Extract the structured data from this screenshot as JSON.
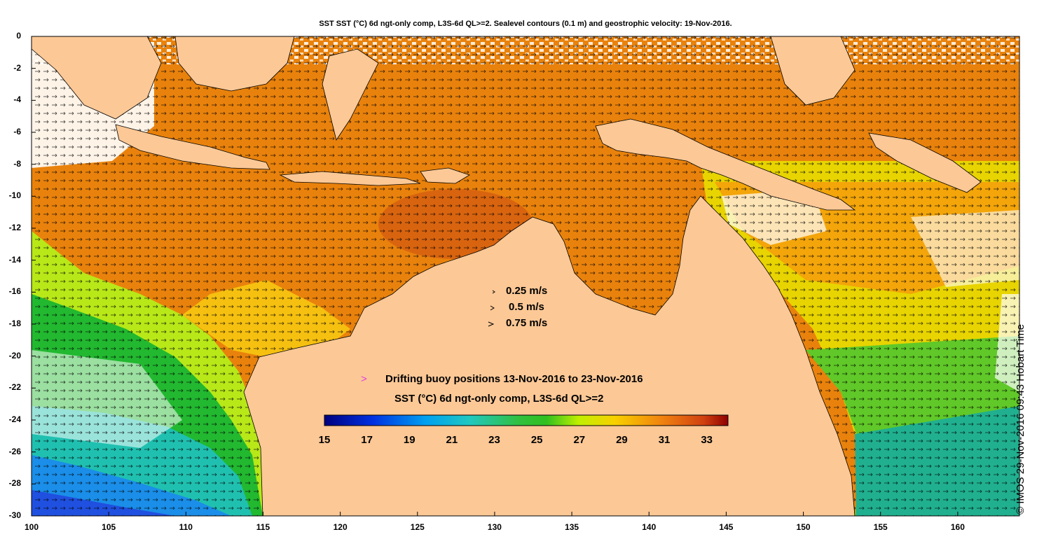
{
  "title": "SST SST (°C) 6d ngt-only comp, L3S-6d QL>=2. Sealevel contours (0.1 m) and geostrophic velocity: 19-Nov-2016.",
  "credit": "© IMOS 29-Nov-2016 09:43 Hobart Time",
  "axes": {
    "y_ticks": [
      "0",
      "-2",
      "-4",
      "-6",
      "-8",
      "-10",
      "-12",
      "-14",
      "-16",
      "-18",
      "-20",
      "-22",
      "-24",
      "-26",
      "-28",
      "-30"
    ],
    "x_ticks": [
      "100",
      "105",
      "110",
      "115",
      "120",
      "125",
      "130",
      "135",
      "140",
      "145",
      "150",
      "155",
      "160"
    ],
    "xlim": [
      100,
      164
    ],
    "ylim": [
      -30,
      0
    ]
  },
  "velocity_legend": {
    "items": [
      "0.25 m/s",
      "0.5 m/s",
      "0.75 m/s"
    ]
  },
  "buoy_legend": {
    "symbol": ">",
    "label": "Drifting buoy positions 13-Nov-2016 to 23-Nov-2016",
    "color": "#e040e0"
  },
  "colorbar": {
    "label": "SST (°C) 6d ngt-only comp, L3S-6d QL>=2",
    "ticks": [
      "15",
      "17",
      "19",
      "21",
      "23",
      "25",
      "27",
      "29",
      "31",
      "33"
    ],
    "range": [
      15,
      34
    ]
  },
  "colors": {
    "land": "#fcc896",
    "warm": "#e9820c",
    "hot": "#d9640f",
    "cloud": "#ffffff"
  }
}
